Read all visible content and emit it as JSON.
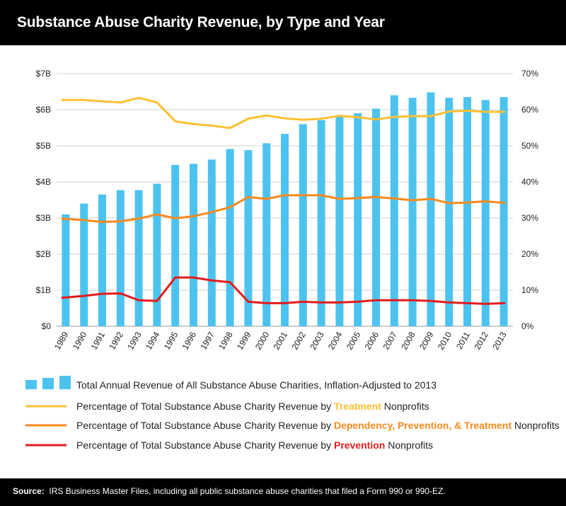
{
  "header": {
    "title": "Substance Abuse Charity Revenue, by Type and Year"
  },
  "footer": {
    "label": "Source:",
    "text": "IRS Business Master Files, including all public substance abuse charities that filed a Form 990 or 990-EZ."
  },
  "colors": {
    "bar": "#4cc3ef",
    "treatment": "#fcc032",
    "dpt": "#f78a1d",
    "prevention": "#e31b1b",
    "grid": "#d0d0d0",
    "text": "#222222"
  },
  "legend": {
    "items": [
      {
        "key": "bar",
        "text": "Total Annual Revenue of All Substance Abuse Charities, Inflation-Adjusted to 2013"
      },
      {
        "key": "treatment",
        "prefix": "Percentage of Total Substance Abuse Charity Revenue by ",
        "highlight": "Treatment",
        "suffix": " Nonprofits"
      },
      {
        "key": "dpt",
        "prefix": "Percentage of Total Substance Abuse Charity Revenue by ",
        "highlight": "Dependency, Prevention, & Treatment",
        "suffix": " Nonprofits"
      },
      {
        "key": "prevention",
        "prefix": "Percentage of Total Substance Abuse Charity Revenue by ",
        "highlight": "Prevention",
        "suffix": " Nonprofits"
      }
    ]
  },
  "chart_data": {
    "type": "bar",
    "title": "Substance Abuse Charity Revenue, by Type and Year",
    "categories": [
      "1989",
      "1990",
      "1991",
      "1992",
      "1993",
      "1994",
      "1995",
      "1996",
      "1997",
      "1998",
      "1999",
      "2000",
      "2001",
      "2002",
      "2003",
      "2004",
      "2005",
      "2006",
      "2007",
      "2008",
      "2009",
      "2010",
      "2011",
      "2012",
      "2013"
    ],
    "left_axis": {
      "ylim": [
        0,
        7
      ],
      "unit": "billions USD",
      "tick_labels": [
        "$0",
        "$1B",
        "$2B",
        "$3B",
        "$4B",
        "$5B",
        "$6B",
        "$7B"
      ]
    },
    "right_axis": {
      "ylim": [
        0,
        70
      ],
      "unit": "percent",
      "tick_labels": [
        "0%",
        "10%",
        "20%",
        "30%",
        "40%",
        "50%",
        "60%",
        "70%"
      ]
    },
    "grid": true,
    "legend_position": "bottom",
    "series": [
      {
        "name": "Total Annual Revenue of All Substance Abuse Charities, Inflation-Adjusted to 2013",
        "type": "bar",
        "axis": "left",
        "values": [
          3.1,
          3.4,
          3.65,
          3.77,
          3.77,
          3.95,
          4.47,
          4.5,
          4.62,
          4.91,
          4.88,
          5.07,
          5.33,
          5.6,
          5.71,
          5.83,
          5.9,
          6.03,
          6.4,
          6.33,
          6.48,
          6.33,
          6.35,
          6.27,
          6.35
        ]
      },
      {
        "name": "Treatment",
        "type": "line",
        "axis": "right",
        "values": [
          62.7,
          62.7,
          62.3,
          62.0,
          63.3,
          62.0,
          56.8,
          56.0,
          55.6,
          54.9,
          57.5,
          58.4,
          57.6,
          57.2,
          57.5,
          58.3,
          57.9,
          57.3,
          58.0,
          58.2,
          58.2,
          59.5,
          59.7,
          59.4,
          59.4
        ]
      },
      {
        "name": "Dependency, Prevention, & Treatment",
        "type": "line",
        "axis": "right",
        "values": [
          29.8,
          29.4,
          28.9,
          29.1,
          29.8,
          31.0,
          29.9,
          30.5,
          31.6,
          33.0,
          35.8,
          35.3,
          36.3,
          36.3,
          36.3,
          35.3,
          35.5,
          35.8,
          35.4,
          34.9,
          35.3,
          34.1,
          34.3,
          34.6,
          34.2
        ]
      },
      {
        "name": "Prevention",
        "type": "line",
        "axis": "right",
        "values": [
          7.9,
          8.4,
          9.0,
          9.1,
          7.2,
          7.0,
          13.5,
          13.5,
          12.7,
          12.2,
          6.8,
          6.4,
          6.4,
          6.8,
          6.6,
          6.6,
          6.8,
          7.2,
          7.2,
          7.2,
          7.0,
          6.6,
          6.4,
          6.2,
          6.4
        ]
      }
    ]
  }
}
